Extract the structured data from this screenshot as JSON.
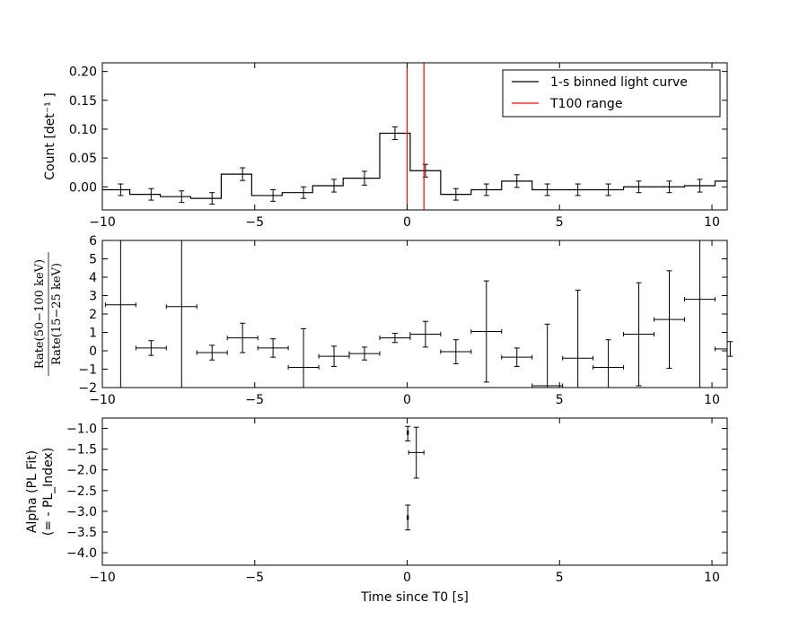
{
  "chart_data": [
    {
      "type": "line",
      "ylabel": "Count [det⁻¹ ]",
      "xlim": [
        -10,
        10.5
      ],
      "ylim": [
        -0.04,
        0.215
      ],
      "xticks": [
        -10,
        -5,
        0,
        5,
        10
      ],
      "yticks": [
        0.0,
        0.05,
        0.1,
        0.15,
        0.2
      ],
      "ytick_labels": [
        "0.00",
        "0.05",
        "0.10",
        "0.15",
        "0.20"
      ],
      "step_edges": [
        -10,
        -9.1,
        -8.1,
        -7.1,
        -6.1,
        -5.1,
        -4.1,
        -3.1,
        -2.1,
        -1.1,
        -0.9,
        0.1,
        1.1,
        2.1,
        3.1,
        4.1,
        5.1,
        6.1,
        7.1,
        8.1,
        9.1,
        10.1,
        10.5
      ],
      "step_values": [
        -0.005,
        -0.013,
        -0.017,
        -0.02,
        0.022,
        -0.015,
        -0.01,
        0.002,
        0.015,
        0.015,
        0.093,
        0.028,
        -0.013,
        -0.005,
        0.01,
        -0.005,
        -0.005,
        -0.005,
        0.0,
        0.0,
        0.002,
        0.01
      ],
      "errorbars": [
        {
          "x": -9.4,
          "y": -0.005,
          "yerr": 0.01
        },
        {
          "x": -8.4,
          "y": -0.013,
          "yerr": 0.01
        },
        {
          "x": -7.4,
          "y": -0.017,
          "yerr": 0.01
        },
        {
          "x": -6.4,
          "y": -0.02,
          "yerr": 0.01
        },
        {
          "x": -5.4,
          "y": 0.022,
          "yerr": 0.011
        },
        {
          "x": -4.4,
          "y": -0.015,
          "yerr": 0.01
        },
        {
          "x": -3.4,
          "y": -0.01,
          "yerr": 0.01
        },
        {
          "x": -2.4,
          "y": 0.002,
          "yerr": 0.011
        },
        {
          "x": -1.4,
          "y": 0.015,
          "yerr": 0.012
        },
        {
          "x": -0.4,
          "y": 0.093,
          "yerr": 0.011
        },
        {
          "x": 0.6,
          "y": 0.028,
          "yerr": 0.011
        },
        {
          "x": 1.6,
          "y": -0.013,
          "yerr": 0.01
        },
        {
          "x": 2.6,
          "y": -0.005,
          "yerr": 0.01
        },
        {
          "x": 3.6,
          "y": 0.01,
          "yerr": 0.011
        },
        {
          "x": 4.6,
          "y": -0.005,
          "yerr": 0.01
        },
        {
          "x": 5.6,
          "y": -0.005,
          "yerr": 0.01
        },
        {
          "x": 6.6,
          "y": -0.005,
          "yerr": 0.01
        },
        {
          "x": 7.6,
          "y": 0.0,
          "yerr": 0.01
        },
        {
          "x": 8.6,
          "y": 0.0,
          "yerr": 0.01
        },
        {
          "x": 9.6,
          "y": 0.002,
          "yerr": 0.011
        }
      ],
      "vlines": [
        0.0,
        0.55
      ],
      "series": [
        {
          "name": "1-s binned light curve",
          "color": "#000000"
        },
        {
          "name": "T100 range",
          "color": "#ff0000"
        }
      ],
      "legend": "top-right"
    },
    {
      "type": "scatter",
      "ylabel_num": "Rate(50−100 keV)",
      "ylabel_den": "Rate(15−25 keV)",
      "xlim": [
        -10,
        10.5
      ],
      "ylim": [
        -2,
        6
      ],
      "xticks": [
        -10,
        -5,
        0,
        5,
        10
      ],
      "yticks": [
        -2,
        -1,
        0,
        1,
        2,
        3,
        4,
        5,
        6
      ],
      "points": [
        {
          "x": -9.4,
          "y": 2.5,
          "xerr": 0.5,
          "yerr": 9
        },
        {
          "x": -8.4,
          "y": 0.15,
          "xerr": 0.5,
          "yerr": 0.4
        },
        {
          "x": -7.4,
          "y": 2.4,
          "xerr": 0.5,
          "yerr": 9
        },
        {
          "x": -6.4,
          "y": -0.1,
          "xerr": 0.5,
          "yerr": 0.4
        },
        {
          "x": -5.4,
          "y": 0.7,
          "xerr": 0.5,
          "yerr": 0.8
        },
        {
          "x": -4.4,
          "y": 0.15,
          "xerr": 0.5,
          "yerr": 0.5
        },
        {
          "x": -3.4,
          "y": -0.9,
          "xerr": 0.5,
          "yerr": 2.1
        },
        {
          "x": -2.4,
          "y": -0.3,
          "xerr": 0.5,
          "yerr": 0.55
        },
        {
          "x": -1.4,
          "y": -0.15,
          "xerr": 0.5,
          "yerr": 0.35
        },
        {
          "x": -0.4,
          "y": 0.7,
          "xerr": 0.5,
          "yerr": 0.25
        },
        {
          "x": 0.6,
          "y": 0.9,
          "xerr": 0.5,
          "yerr": 0.7
        },
        {
          "x": 1.6,
          "y": -0.05,
          "xerr": 0.5,
          "yerr": 0.65
        },
        {
          "x": 2.6,
          "y": 1.05,
          "xerr": 0.5,
          "yerr": 2.75
        },
        {
          "x": 3.6,
          "y": -0.35,
          "xerr": 0.5,
          "yerr": 0.5
        },
        {
          "x": 4.6,
          "y": -1.9,
          "xerr": 0.5,
          "yerr": 3.35
        },
        {
          "x": 5.6,
          "y": -0.4,
          "xerr": 0.5,
          "yerr": 3.7
        },
        {
          "x": 6.6,
          "y": -0.9,
          "xerr": 0.5,
          "yerr": 1.5
        },
        {
          "x": 7.6,
          "y": 0.9,
          "xerr": 0.5,
          "yerr": 2.8
        },
        {
          "x": 8.6,
          "y": 1.7,
          "xerr": 0.5,
          "yerr": 2.65
        },
        {
          "x": 9.6,
          "y": 2.8,
          "xerr": 0.5,
          "yerr": 9
        },
        {
          "x": 10.6,
          "y": 0.1,
          "xerr": 0.5,
          "yerr": 0.4
        }
      ]
    },
    {
      "type": "scatter",
      "ylabel": [
        "Alpha (PL Fit)",
        "(= - PL_Index)"
      ],
      "xlabel": "Time since T0 [s]",
      "xlim": [
        -10,
        10.5
      ],
      "ylim": [
        -4.3,
        -0.75
      ],
      "xticks": [
        -10,
        -5,
        0,
        5,
        10
      ],
      "yticks": [
        -1.0,
        -1.5,
        -2.0,
        -2.5,
        -3.0,
        -3.5,
        -4.0
      ],
      "ytick_labels": [
        "−1.0",
        "−1.5",
        "−2.0",
        "−2.5",
        "−3.0",
        "−3.5",
        "−4.0"
      ],
      "points": [
        {
          "x": 0.02,
          "y": -1.1,
          "xerr": 0.02,
          "ylow": -1.3,
          "yhigh": -0.95
        },
        {
          "x": 0.3,
          "y": -1.58,
          "xerr": 0.25,
          "ylow": -2.2,
          "yhigh": -0.97
        },
        {
          "x": 0.02,
          "y": -3.15,
          "xerr": 0.02,
          "ylow": -3.45,
          "yhigh": -2.85
        }
      ]
    }
  ]
}
